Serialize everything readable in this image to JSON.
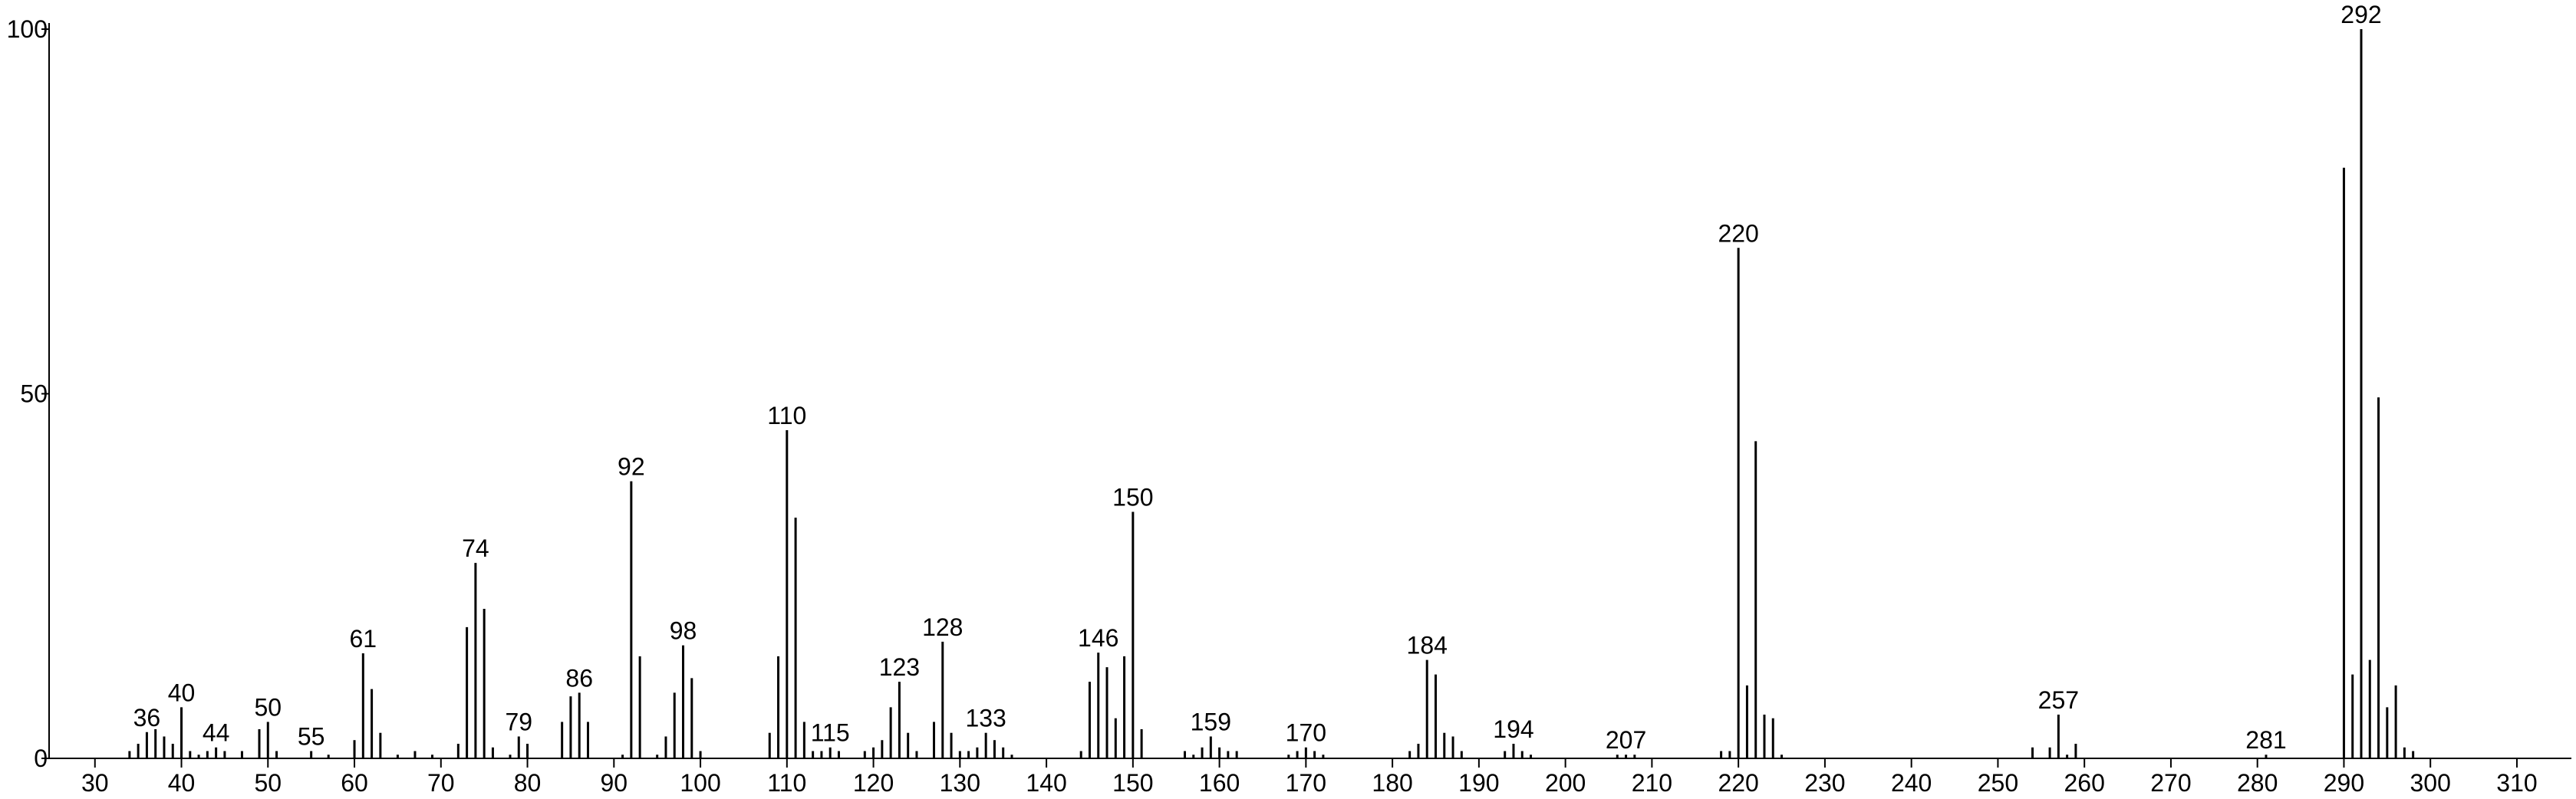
{
  "chart_data": {
    "type": "stem",
    "color": "#000000",
    "xlim": [
      24.7,
      316.3
    ],
    "ylim": [
      0,
      100
    ],
    "xticks": [
      30,
      40,
      50,
      60,
      70,
      80,
      90,
      100,
      110,
      120,
      130,
      140,
      150,
      160,
      170,
      180,
      190,
      200,
      210,
      220,
      230,
      240,
      250,
      260,
      270,
      280,
      290,
      300,
      310
    ],
    "yticks": [
      0,
      50,
      100
    ],
    "x": [
      34,
      35,
      36,
      37,
      38,
      39,
      40,
      41,
      42,
      43,
      44,
      45,
      47,
      49,
      50,
      51,
      55,
      57,
      60,
      61,
      62,
      63,
      65,
      67,
      69,
      72,
      73,
      74,
      75,
      76,
      78,
      79,
      80,
      84,
      85,
      86,
      87,
      91,
      92,
      93,
      95,
      96,
      97,
      98,
      99,
      100,
      108,
      109,
      110,
      111,
      112,
      113,
      114,
      115,
      116,
      119,
      120,
      121,
      122,
      123,
      124,
      125,
      127,
      128,
      129,
      130,
      131,
      132,
      133,
      134,
      135,
      136,
      144,
      145,
      146,
      147,
      148,
      149,
      150,
      151,
      156,
      157,
      158,
      159,
      160,
      161,
      162,
      168,
      169,
      170,
      171,
      172,
      182,
      183,
      184,
      185,
      186,
      187,
      188,
      193,
      194,
      195,
      196,
      206,
      207,
      208,
      218,
      219,
      220,
      221,
      222,
      223,
      224,
      225,
      254,
      256,
      257,
      258,
      259,
      281,
      290,
      291,
      292,
      293,
      294,
      295,
      296,
      297,
      298
    ],
    "values": [
      1,
      2,
      3.6,
      4,
      3,
      2,
      7,
      1,
      0.5,
      1,
      1.5,
      1,
      1,
      4,
      5,
      1,
      1,
      0.5,
      2.5,
      14.4,
      9.5,
      3.5,
      0.5,
      1,
      0.5,
      2,
      18,
      26.8,
      20.5,
      1.5,
      0.5,
      3,
      2,
      5,
      8.5,
      9,
      5,
      0.5,
      38,
      14,
      0.5,
      3,
      9,
      15.5,
      11,
      1,
      3.5,
      14,
      45,
      33,
      5,
      1,
      1,
      1.5,
      1,
      1,
      1.5,
      2.5,
      7,
      10.5,
      3.5,
      1,
      5,
      16,
      3.5,
      1,
      1,
      1.5,
      3.5,
      2.5,
      1.5,
      0.5,
      1,
      10.5,
      14.5,
      12.5,
      5.5,
      14,
      33.8,
      4,
      1,
      0.5,
      1.5,
      3,
      1.5,
      1,
      1,
      0.5,
      1,
      1.5,
      1,
      0.5,
      1,
      2,
      13.5,
      11.5,
      3.5,
      3,
      1,
      1,
      2,
      1,
      0.5,
      0.5,
      0.5,
      0.5,
      1,
      1,
      70,
      10,
      43.5,
      6,
      5.5,
      0.5,
      1.5,
      1.5,
      6,
      0.5,
      2,
      0.5,
      81,
      11.5,
      100,
      13.5,
      49.5,
      7,
      10,
      1.5,
      1
    ],
    "peak_labels": [
      36,
      40,
      44,
      50,
      55,
      61,
      74,
      79,
      86,
      92,
      98,
      110,
      115,
      123,
      128,
      133,
      146,
      150,
      159,
      170,
      184,
      194,
      207,
      220,
      257,
      281,
      292
    ]
  }
}
